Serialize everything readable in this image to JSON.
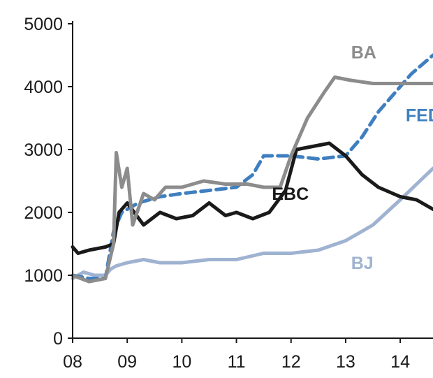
{
  "chart_data": {
    "type": "line",
    "title": "",
    "xlabel": "",
    "ylabel": "",
    "xlim": [
      2008,
      2014.6
    ],
    "ylim": [
      0,
      5000
    ],
    "grid": false,
    "legend": "inline labels",
    "x_ticks": [
      {
        "value": 2008,
        "label": "08"
      },
      {
        "value": 2009,
        "label": "09"
      },
      {
        "value": 2010,
        "label": "10"
      },
      {
        "value": 2011,
        "label": "11"
      },
      {
        "value": 2012,
        "label": "12"
      },
      {
        "value": 2013,
        "label": "13"
      },
      {
        "value": 2014,
        "label": "14"
      }
    ],
    "y_ticks": [
      {
        "value": 0,
        "label": "0"
      },
      {
        "value": 1000,
        "label": "1000"
      },
      {
        "value": 2000,
        "label": "2000"
      },
      {
        "value": 3000,
        "label": "3000"
      },
      {
        "value": 4000,
        "label": "4000"
      },
      {
        "value": 5000,
        "label": "5000"
      }
    ],
    "series": [
      {
        "name": "BJ",
        "color": "#9fb3d1",
        "style": "solid",
        "label_at": [
          2013.1,
          1100
        ],
        "points": [
          [
            2008,
            950
          ],
          [
            2008.2,
            1050
          ],
          [
            2008.4,
            1000
          ],
          [
            2008.6,
            1000
          ],
          [
            2008.7,
            1100
          ],
          [
            2008.8,
            1150
          ],
          [
            2009,
            1200
          ],
          [
            2009.3,
            1250
          ],
          [
            2009.6,
            1200
          ],
          [
            2010,
            1200
          ],
          [
            2010.5,
            1250
          ],
          [
            2011,
            1250
          ],
          [
            2011.5,
            1350
          ],
          [
            2012,
            1350
          ],
          [
            2012.5,
            1400
          ],
          [
            2013,
            1550
          ],
          [
            2013.5,
            1800
          ],
          [
            2014,
            2200
          ],
          [
            2014.3,
            2450
          ],
          [
            2014.6,
            2700
          ]
        ]
      },
      {
        "name": "FED",
        "color": "#3f7fc0",
        "style": "dashed",
        "label_at": [
          2014.1,
          3450
        ],
        "points": [
          [
            2008,
            1000
          ],
          [
            2008.3,
            950
          ],
          [
            2008.6,
            950
          ],
          [
            2008.75,
            1700
          ],
          [
            2008.9,
            2000
          ],
          [
            2009.2,
            2150
          ],
          [
            2009.6,
            2250
          ],
          [
            2010,
            2300
          ],
          [
            2010.5,
            2350
          ],
          [
            2011,
            2400
          ],
          [
            2011.3,
            2600
          ],
          [
            2011.5,
            2900
          ],
          [
            2012,
            2900
          ],
          [
            2012.5,
            2850
          ],
          [
            2013,
            2900
          ],
          [
            2013.3,
            3200
          ],
          [
            2013.6,
            3600
          ],
          [
            2013.9,
            3900
          ],
          [
            2014.2,
            4200
          ],
          [
            2014.6,
            4500
          ]
        ]
      },
      {
        "name": "EBC",
        "color": "#1a1a1a",
        "style": "solid",
        "label_at": [
          2011.65,
          2200
        ],
        "points": [
          [
            2008,
            1450
          ],
          [
            2008.1,
            1350
          ],
          [
            2008.3,
            1400
          ],
          [
            2008.6,
            1450
          ],
          [
            2008.75,
            1500
          ],
          [
            2008.85,
            2000
          ],
          [
            2009,
            2150
          ],
          [
            2009.3,
            1800
          ],
          [
            2009.6,
            2000
          ],
          [
            2009.9,
            1900
          ],
          [
            2010.2,
            1950
          ],
          [
            2010.5,
            2150
          ],
          [
            2010.8,
            1950
          ],
          [
            2011,
            2000
          ],
          [
            2011.3,
            1900
          ],
          [
            2011.6,
            2000
          ],
          [
            2011.9,
            2350
          ],
          [
            2012.1,
            3000
          ],
          [
            2012.4,
            3050
          ],
          [
            2012.7,
            3100
          ],
          [
            2013,
            2900
          ],
          [
            2013.3,
            2600
          ],
          [
            2013.6,
            2400
          ],
          [
            2014,
            2250
          ],
          [
            2014.3,
            2200
          ],
          [
            2014.6,
            2050
          ]
        ]
      },
      {
        "name": "BA",
        "color": "#8c8c8c",
        "style": "solid",
        "label_at": [
          2013.1,
          4450
        ],
        "points": [
          [
            2008,
            1000
          ],
          [
            2008.3,
            900
          ],
          [
            2008.6,
            950
          ],
          [
            2008.75,
            1500
          ],
          [
            2008.8,
            2950
          ],
          [
            2008.9,
            2400
          ],
          [
            2009,
            2700
          ],
          [
            2009.1,
            1800
          ],
          [
            2009.3,
            2300
          ],
          [
            2009.5,
            2200
          ],
          [
            2009.7,
            2400
          ],
          [
            2010,
            2400
          ],
          [
            2010.4,
            2500
          ],
          [
            2010.8,
            2450
          ],
          [
            2011.2,
            2450
          ],
          [
            2011.5,
            2400
          ],
          [
            2011.8,
            2400
          ],
          [
            2012,
            2900
          ],
          [
            2012.3,
            3500
          ],
          [
            2012.6,
            3900
          ],
          [
            2012.8,
            4150
          ],
          [
            2013.1,
            4100
          ],
          [
            2013.5,
            4050
          ],
          [
            2014,
            4050
          ],
          [
            2014.6,
            4050
          ]
        ]
      }
    ]
  }
}
